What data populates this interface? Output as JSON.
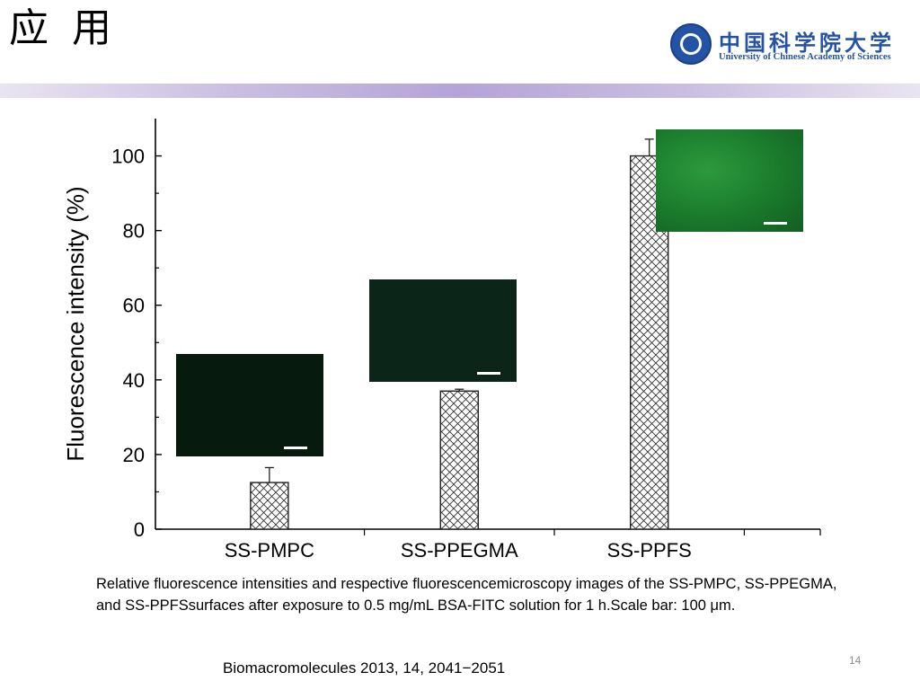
{
  "slide": {
    "title": "应 用",
    "page_number": "14",
    "caption": "Relative fluorescence intensities and respective fluorescencemicroscopy images of the SS-PMPC, SS-PPEGMA, and SS-PPFSsurfaces after exposure to 0.5 mg/mL BSA-FITC solution for 1 h.Scale bar: 100 μm.",
    "reference": "Biomacromolecules 2013, 14, 2041−2051"
  },
  "logo": {
    "name_cn": "中国科学院大学",
    "name_en": "University of Chinese Academy of Sciences",
    "color": "#2453a6"
  },
  "chart_data": {
    "type": "bar",
    "categories": [
      "SS-PMPC",
      "SS-PPEGMA",
      "SS-PPFS"
    ],
    "values": [
      12.5,
      37,
      100
    ],
    "errors": [
      4,
      0.5,
      4.5
    ],
    "xlabel": "",
    "ylabel": "Fluorescence intensity (%)",
    "ylim": [
      0,
      110
    ],
    "yticks": [
      0,
      20,
      40,
      60,
      80,
      100
    ],
    "bar_fill": "crosshatch",
    "grid": false,
    "legend": "none",
    "insets": [
      {
        "category": "SS-PMPC",
        "image": "fluorescence-micrograph",
        "color": "#061a0e"
      },
      {
        "category": "SS-PPEGMA",
        "image": "fluorescence-micrograph",
        "color": "#0b2619"
      },
      {
        "category": "SS-PPFS",
        "image": "fluorescence-micrograph",
        "color": "#1a7a2c"
      }
    ]
  }
}
